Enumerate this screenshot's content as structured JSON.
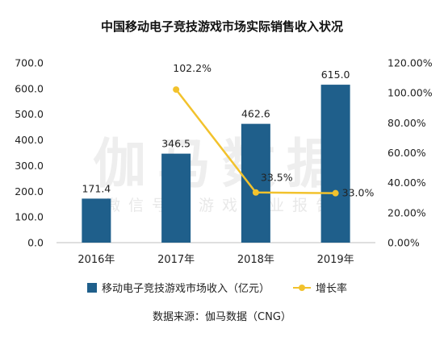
{
  "title": "中国移动电子竞技游戏市场实际销售收入状况",
  "source": "数据来源：伽马数据（CNG）",
  "watermark": {
    "main": "伽马数据",
    "sub": "微信号：游戏产业报告"
  },
  "colors": {
    "bar": "#1f5f8b",
    "line": "#f2c22c",
    "axis": "#bfbfbf"
  },
  "chart_data": {
    "type": "bar",
    "categories": [
      "2016年",
      "2017年",
      "2018年",
      "2019年"
    ],
    "series": [
      {
        "name": "移动电子竞技游戏市场收入（亿元）",
        "type": "bar",
        "axis": "left",
        "values": [
          171.4,
          346.5,
          462.6,
          615.0
        ],
        "labels": [
          "171.4",
          "346.5",
          "462.6",
          "615.0"
        ]
      },
      {
        "name": "增长率",
        "type": "line",
        "axis": "right",
        "values": [
          null,
          102.2,
          33.5,
          33.0
        ],
        "labels": [
          null,
          "102.2%",
          "33.5%",
          "33.0%"
        ]
      }
    ],
    "y_left": {
      "min": 0,
      "max": 700,
      "ticks": [
        "0.0",
        "100.0",
        "200.0",
        "300.0",
        "400.0",
        "500.0",
        "600.0",
        "700.0"
      ]
    },
    "y_right": {
      "min": 0,
      "max": 120,
      "ticks": [
        "0.00%",
        "20.00%",
        "40.00%",
        "60.00%",
        "80.00%",
        "100.00%",
        "120.00%"
      ]
    },
    "grid": false,
    "legend_position": "bottom"
  }
}
